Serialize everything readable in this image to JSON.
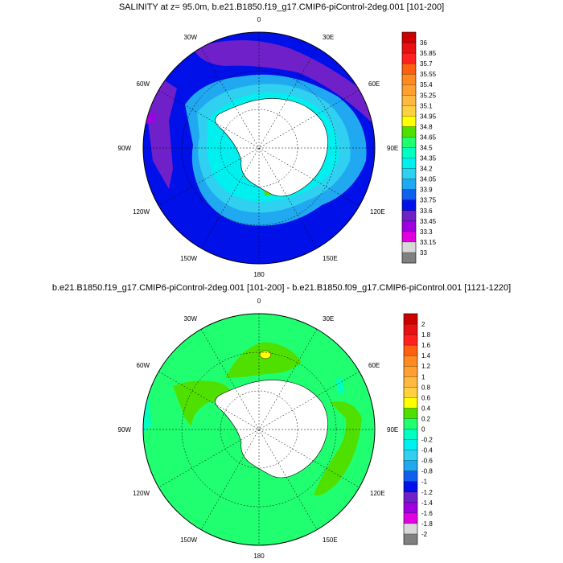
{
  "panels": [
    {
      "title": "SALINITY at z=  95.0m, b.e21.B1850.f19_g17.CMIP6-piControl-2deg.001 [101-200]",
      "lon_labels": [
        "0",
        "30E",
        "60E",
        "90E",
        "120E",
        "150E",
        "180",
        "150W",
        "120W",
        "90W",
        "60W",
        "30W"
      ],
      "colorbar": {
        "labels": [
          "36",
          "35.85",
          "35.7",
          "35.55",
          "35.4",
          "35.25",
          "35.1",
          "34.95",
          "34.8",
          "34.65",
          "34.5",
          "34.35",
          "34.2",
          "34.05",
          "33.9",
          "33.75",
          "33.6",
          "33.45",
          "33.3",
          "33.15",
          "33"
        ],
        "colors": [
          "#cc0000",
          "#e81010",
          "#ff2020",
          "#ff6010",
          "#ff8a20",
          "#ffa030",
          "#ffb840",
          "#ffd040",
          "#ffff00",
          "#50e000",
          "#20ff70",
          "#00ffc0",
          "#00f0f0",
          "#30d0f0",
          "#20a8f0",
          "#1060f0",
          "#0010e8",
          "#7020c8",
          "#a000e0",
          "#e000e0",
          "#d8d8d8",
          "#808080"
        ]
      }
    },
    {
      "title": "b.e21.B1850.f19_g17.CMIP6-piControl-2deg.001 [101-200] - b.e21.B1850.f09_g17.CMIP6-piControl.001 [1121-1220]",
      "lon_labels": [
        "0",
        "30E",
        "60E",
        "90E",
        "120E",
        "150E",
        "180",
        "150W",
        "120W",
        "90W",
        "60W",
        "30W"
      ],
      "colorbar": {
        "labels": [
          "2",
          "1.8",
          "1.6",
          "1.4",
          "1.2",
          "1",
          "0.8",
          "0.6",
          "0.4",
          "0.2",
          "0",
          "-0.2",
          "-0.4",
          "-0.6",
          "-0.8",
          "-1",
          "-1.2",
          "-1.4",
          "-1.6",
          "-1.8",
          "-2"
        ],
        "colors": [
          "#cc0000",
          "#e81010",
          "#ff2020",
          "#ff6010",
          "#ff8a20",
          "#ffa030",
          "#ffb840",
          "#ffd040",
          "#ffff00",
          "#50e000",
          "#20ff70",
          "#00ffc0",
          "#00f0f0",
          "#30d0f0",
          "#20a8f0",
          "#1060f0",
          "#0010e8",
          "#7020c8",
          "#a000e0",
          "#e000e0",
          "#d8d8d8",
          "#808080"
        ]
      }
    }
  ]
}
